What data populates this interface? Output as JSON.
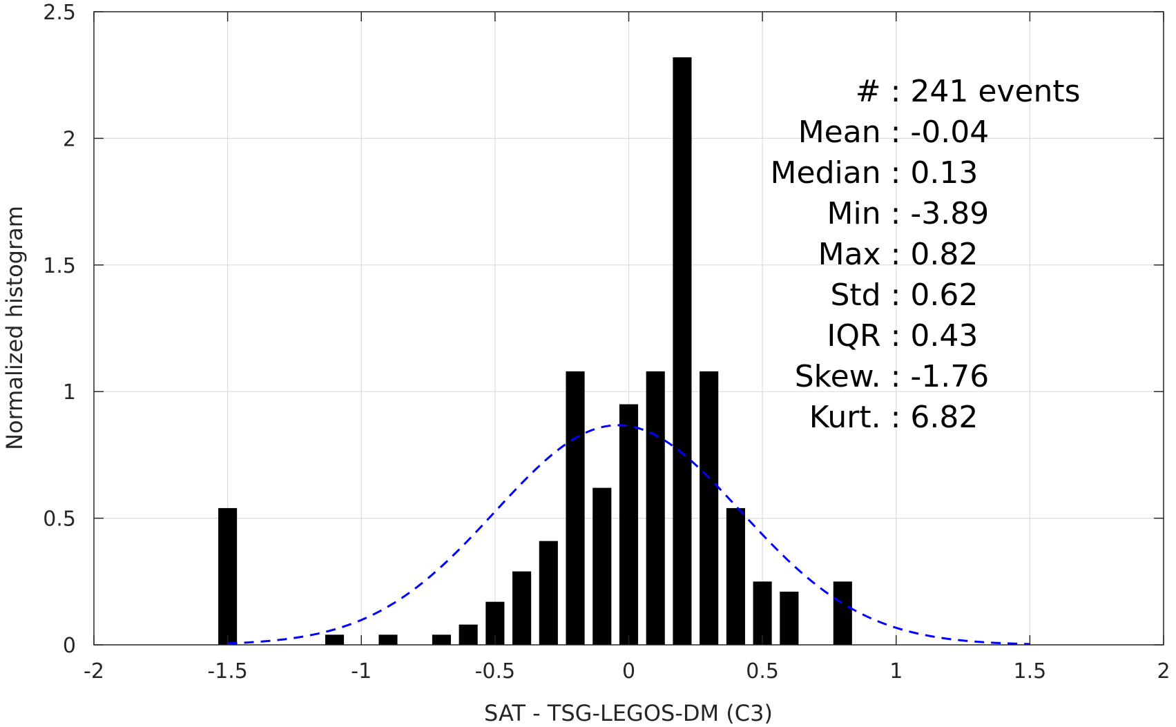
{
  "chart_data": {
    "type": "bar",
    "xlabel": "SAT - TSG-LEGOS-DM (C3)",
    "ylabel": "Normalized histogram",
    "xlim": [
      -2,
      2
    ],
    "ylim": [
      0,
      2.5
    ],
    "xticks": [
      -2,
      -1.5,
      -1,
      -0.5,
      0,
      0.5,
      1,
      1.5,
      2
    ],
    "xtick_labels": [
      "-2",
      "-1.5",
      "-1",
      "-0.5",
      "0",
      "0.5",
      "1",
      "1.5",
      "2"
    ],
    "yticks": [
      0,
      0.5,
      1,
      1.5,
      2,
      2.5
    ],
    "ytick_labels": [
      "0",
      "0.5",
      "1",
      "1.5",
      "2",
      "2.5"
    ],
    "grid": true,
    "bar_width": 0.07,
    "bins": [
      {
        "x": -1.5,
        "value": 0.54
      },
      {
        "x": -1.1,
        "value": 0.04
      },
      {
        "x": -0.9,
        "value": 0.04
      },
      {
        "x": -0.7,
        "value": 0.04
      },
      {
        "x": -0.6,
        "value": 0.08
      },
      {
        "x": -0.5,
        "value": 0.17
      },
      {
        "x": -0.4,
        "value": 0.29
      },
      {
        "x": -0.3,
        "value": 0.41
      },
      {
        "x": -0.2,
        "value": 1.08
      },
      {
        "x": -0.1,
        "value": 0.62
      },
      {
        "x": 0.0,
        "value": 0.95
      },
      {
        "x": 0.1,
        "value": 1.08
      },
      {
        "x": 0.2,
        "value": 2.32
      },
      {
        "x": 0.3,
        "value": 1.08
      },
      {
        "x": 0.4,
        "value": 0.54
      },
      {
        "x": 0.5,
        "value": 0.25
      },
      {
        "x": 0.6,
        "value": 0.21
      },
      {
        "x": 0.8,
        "value": 0.25
      }
    ],
    "fit_curve": {
      "style": "dashed",
      "color": "#0000ff",
      "mean": -0.04,
      "std": 0.46,
      "x_range": [
        -1.5,
        1.5
      ]
    },
    "bar_color": "#000000",
    "stats": [
      {
        "name": "#  ",
        "sep": ":",
        "value": "241 events"
      },
      {
        "name": "Mean",
        "sep": ":",
        "value": "-0.04"
      },
      {
        "name": "Median",
        "sep": ":",
        "value": "0.13"
      },
      {
        "name": "Min",
        "sep": ":",
        "value": "-3.89"
      },
      {
        "name": "Max",
        "sep": ":",
        "value": "0.82"
      },
      {
        "name": "Std",
        "sep": ":",
        "value": "0.62"
      },
      {
        "name": "IQR",
        "sep": ":",
        "value": "0.43"
      },
      {
        "name": "Skew.",
        "sep": ":",
        "value": "-1.76"
      },
      {
        "name": "Kurt.",
        "sep": ":",
        "value": "6.82"
      }
    ]
  }
}
